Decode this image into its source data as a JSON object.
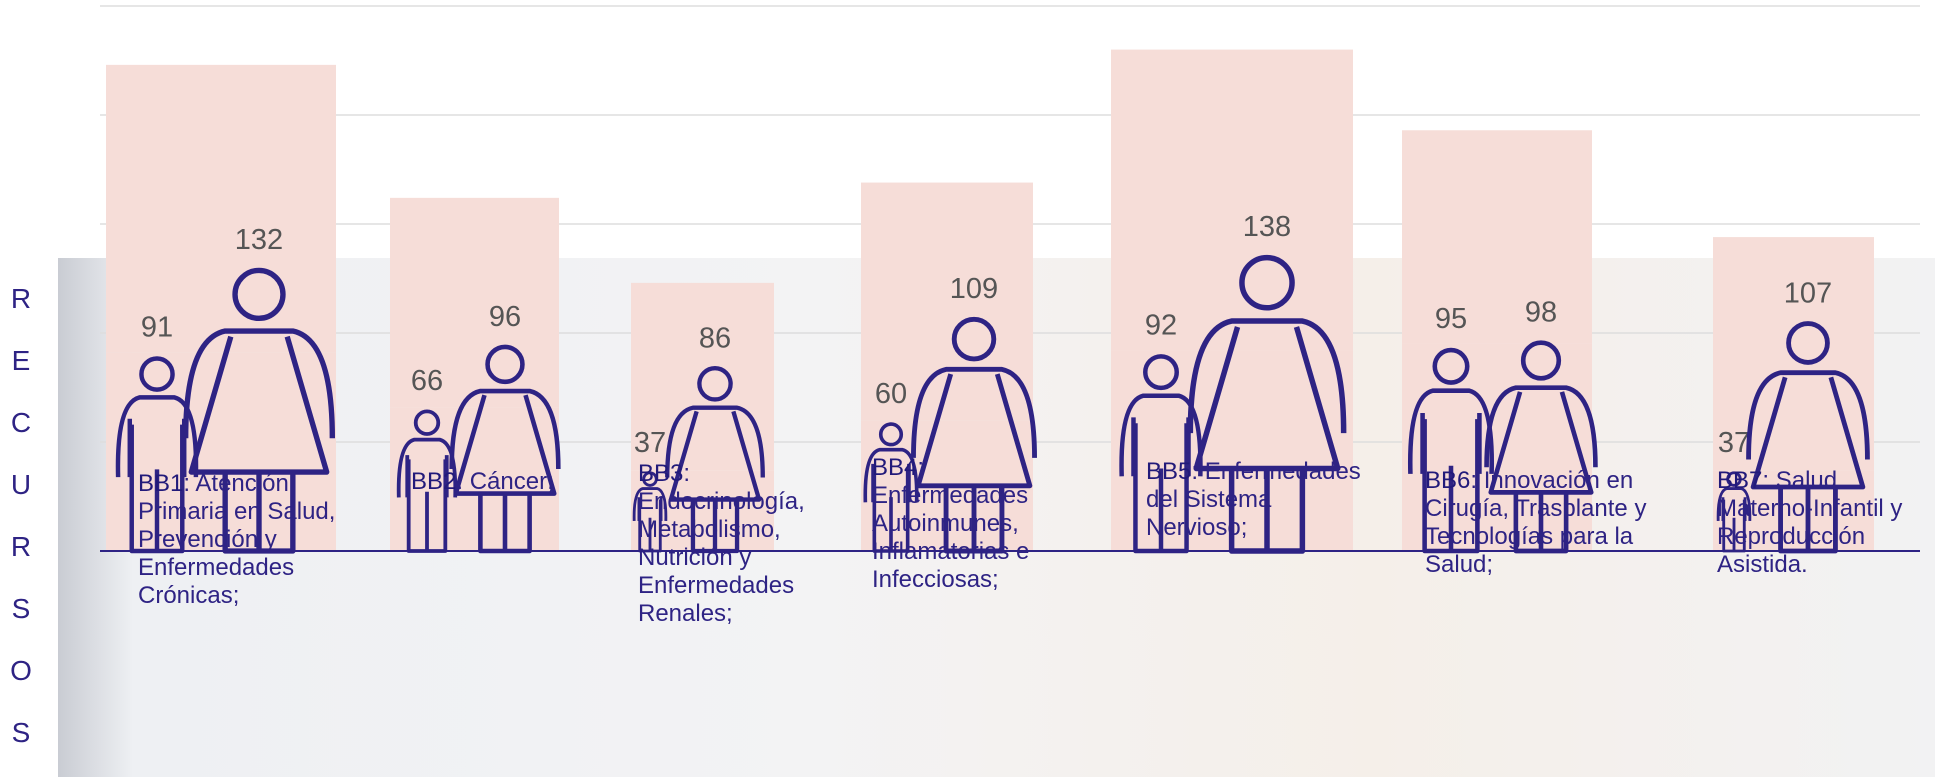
{
  "chart_data": {
    "type": "pictogram",
    "y_label": "RECURSOS",
    "categories": [
      "BB1",
      "BB2",
      "BB3",
      "BB4",
      "BB5",
      "BB6",
      "BB7"
    ],
    "descriptions": [
      ": Atención Primaria en Salud, Prevención y Enfermedades Crónicas;",
      ": Cáncer;",
      ": Endocrinología, Metabolismo, Nutrición y Enfermedades Renales;",
      ": Enfermedades Autoinmunes, Inflamatorias e Infecciosas;",
      ": Enfermedades del Sistema Nervioso;",
      ": Innovación en Cirugía, Trasplante y Tecnologías para la Salud;",
      ": Salud Materno-Infantil y Reproducción Asistida."
    ],
    "series": [
      {
        "icon": "man",
        "color": "#2e2384",
        "values": [
          91,
          66,
          37,
          60,
          92,
          95,
          37
        ]
      },
      {
        "icon": "woman",
        "color": "#2e2384",
        "values": [
          132,
          96,
          86,
          109,
          138,
          98,
          107
        ]
      }
    ],
    "bar_color": "#f6ddd8",
    "ylim": [
      0,
      250
    ],
    "yticks": [
      0,
      50,
      100,
      150,
      200,
      250
    ],
    "grid": true
  }
}
